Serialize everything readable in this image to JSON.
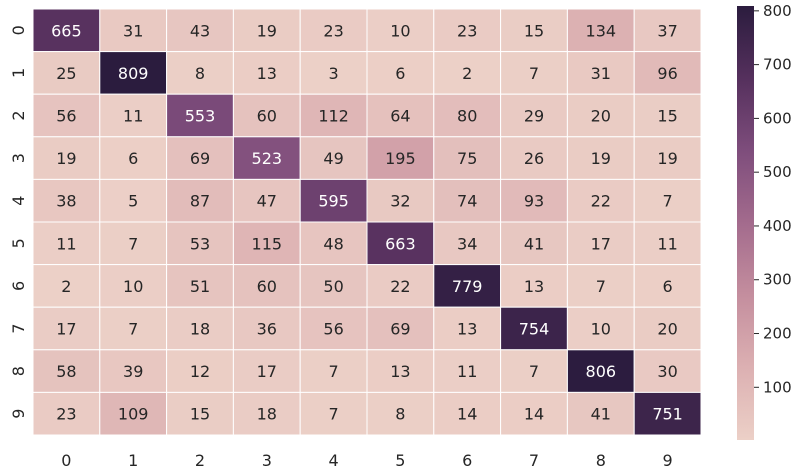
{
  "chart_data": {
    "type": "heatmap",
    "x_labels": [
      "0",
      "1",
      "2",
      "3",
      "4",
      "5",
      "6",
      "7",
      "8",
      "9"
    ],
    "y_labels": [
      "0",
      "1",
      "2",
      "3",
      "4",
      "5",
      "6",
      "7",
      "8",
      "9"
    ],
    "values": [
      [
        665,
        31,
        43,
        19,
        23,
        10,
        23,
        15,
        134,
        37
      ],
      [
        25,
        809,
        8,
        13,
        3,
        6,
        2,
        7,
        31,
        96
      ],
      [
        56,
        11,
        553,
        60,
        112,
        64,
        80,
        29,
        20,
        15
      ],
      [
        19,
        6,
        69,
        523,
        49,
        195,
        75,
        26,
        19,
        19
      ],
      [
        38,
        5,
        87,
        47,
        595,
        32,
        74,
        93,
        22,
        7
      ],
      [
        11,
        7,
        53,
        115,
        48,
        663,
        34,
        41,
        17,
        11
      ],
      [
        2,
        10,
        51,
        60,
        50,
        22,
        779,
        13,
        7,
        6
      ],
      [
        17,
        7,
        18,
        36,
        56,
        69,
        13,
        754,
        10,
        20
      ],
      [
        58,
        39,
        12,
        17,
        7,
        13,
        11,
        7,
        806,
        30
      ],
      [
        23,
        109,
        15,
        18,
        7,
        8,
        14,
        14,
        41,
        751
      ]
    ],
    "colorbar": {
      "min": 2,
      "max": 809,
      "ticks": [
        100,
        200,
        300,
        400,
        500,
        600,
        700,
        800
      ],
      "colors": [
        "#ecd0c7",
        "#dcb0b2",
        "#c48e9e",
        "#a36b8d",
        "#7e4d7c",
        "#55305d",
        "#2b1c3e"
      ]
    },
    "title": "",
    "xlabel": "",
    "ylabel": ""
  }
}
